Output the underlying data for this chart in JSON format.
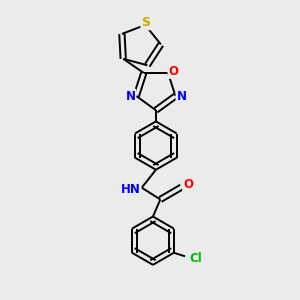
{
  "background_color": "#ebebeb",
  "bond_color": "#000000",
  "atom_colors": {
    "S": "#ccaa00",
    "O": "#ff0000",
    "N": "#0000ff",
    "Cl": "#00bb00",
    "C": "#000000",
    "H": "#555555"
  },
  "figsize": [
    3.0,
    3.0
  ],
  "dpi": 100,
  "xlim": [
    0,
    10
  ],
  "ylim": [
    0,
    10
  ]
}
